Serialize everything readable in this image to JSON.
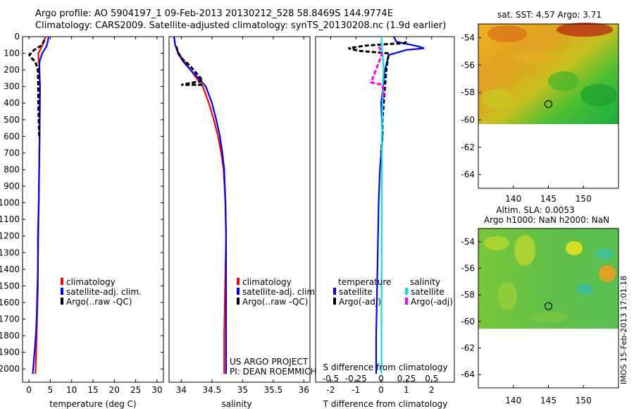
{
  "header": {
    "line1": "Argo profile: AO 5904197_1 09-Feb-2013 20130212_528 58.8469S 144.9774E",
    "line2": "Climatology: CARS2009. Satellite-adjusted climatology: synTS_20130208.nc (1.9d earlier)"
  },
  "colors": {
    "climatology": "#ff0000",
    "satellite": "#0000ff",
    "argo": "#000000",
    "salinity_satellite": "#00e5e5",
    "salinity_argo": "#ff00ff"
  },
  "chart_data": [
    {
      "type": "line",
      "id": "temperature",
      "xlabel": "temperature (deg C)",
      "ylabel": "",
      "xlim": [
        -1.5,
        31.5
      ],
      "ylim": [
        2080,
        0
      ],
      "xticks": [
        0,
        5,
        10,
        15,
        20,
        25,
        30
      ],
      "yticks": [
        0,
        100,
        200,
        300,
        400,
        500,
        600,
        700,
        800,
        900,
        1000,
        1100,
        1200,
        1300,
        1400,
        1500,
        1600,
        1700,
        1800,
        1900,
        2000
      ],
      "legend": [
        "climatology",
        "satellite-adj. clim.",
        "Argo(..raw -QC)"
      ],
      "series": [
        {
          "name": "climatology",
          "color": "#ff0000",
          "x": [
            3.9,
            3.5,
            3.0,
            2.2,
            2.3,
            2.5,
            2.6,
            2.6,
            2.5,
            2.4,
            2.3,
            2.2,
            2.1,
            2.1,
            2.0,
            1.9,
            1.8,
            1.7,
            1.5
          ],
          "y": [
            0,
            30,
            60,
            100,
            150,
            200,
            300,
            400,
            600,
            800,
            1000,
            1200,
            1400,
            1500,
            1600,
            1700,
            1800,
            1900,
            2030
          ]
        },
        {
          "name": "satellite-adj. clim.",
          "color": "#0000ff",
          "x": [
            4.6,
            4.4,
            4.1,
            3.1,
            2.5,
            2.4,
            2.6,
            2.5,
            2.5,
            2.4,
            2.3,
            2.1,
            2.1,
            2.0,
            1.9,
            1.8,
            1.6,
            1.3,
            0.9
          ],
          "y": [
            0,
            30,
            60,
            100,
            150,
            200,
            300,
            400,
            600,
            800,
            1000,
            1200,
            1400,
            1500,
            1600,
            1700,
            1800,
            1900,
            2030
          ]
        },
        {
          "name": "Argo(..raw -QC)",
          "color": "#000000",
          "x": [
            3.6,
            3.1,
            1.2,
            0.1,
            0.4,
            1.5,
            2.1,
            2.2,
            2.2,
            2.3,
            2.4
          ],
          "y": [
            20,
            50,
            80,
            110,
            125,
            150,
            200,
            300,
            400,
            500,
            600
          ]
        }
      ]
    },
    {
      "type": "line",
      "id": "salinity",
      "xlabel": "salinity",
      "ylabel": "",
      "xlim": [
        33.8,
        36.1
      ],
      "ylim": [
        2080,
        0
      ],
      "xticks": [
        34,
        34.5,
        35,
        35.5,
        36
      ],
      "legend": [
        "climatology",
        "satellite-adj. clim.",
        "Argo(..raw -QC)"
      ],
      "annotations": [
        "US ARGO PROJECT",
        "PI: DEAN ROEMMICH"
      ],
      "series": [
        {
          "name": "climatology",
          "color": "#ff0000",
          "x": [
            33.88,
            33.9,
            33.96,
            34.05,
            34.15,
            34.25,
            34.35,
            34.45,
            34.53,
            34.6,
            34.65,
            34.69,
            34.72,
            34.73,
            34.72,
            34.71,
            34.7,
            34.7
          ],
          "y": [
            0,
            50,
            100,
            150,
            200,
            250,
            300,
            400,
            500,
            600,
            700,
            800,
            1000,
            1200,
            1400,
            1600,
            1800,
            2030
          ]
        },
        {
          "name": "satellite-adj. clim.",
          "color": "#0000ff",
          "x": [
            33.88,
            33.9,
            33.95,
            34.03,
            34.15,
            34.28,
            34.4,
            34.5,
            34.57,
            34.63,
            34.67,
            34.7,
            34.72,
            34.73,
            34.73,
            34.73,
            34.73,
            34.73
          ],
          "y": [
            0,
            50,
            100,
            150,
            200,
            250,
            300,
            400,
            500,
            600,
            700,
            800,
            1000,
            1200,
            1400,
            1600,
            1800,
            2030
          ]
        },
        {
          "name": "Argo(..raw -QC)",
          "color": "#000000",
          "x": [
            33.92,
            33.95,
            34.0,
            34.1,
            34.2,
            34.35,
            34.0,
            34.35
          ],
          "y": [
            60,
            100,
            130,
            160,
            200,
            265,
            290,
            290
          ]
        }
      ]
    },
    {
      "type": "line",
      "id": "differences",
      "xlabel": "T difference from climatology",
      "xlabel_top": "S difference from climatology",
      "xlim": [
        -2.6,
        2.9
      ],
      "xticks": [
        -2,
        -1,
        0,
        1,
        2
      ],
      "xticks_s": [
        -0.5,
        -0.25,
        0,
        0.25,
        0.5
      ],
      "ylim": [
        2080,
        0
      ],
      "legend_titles": [
        "temperature",
        "salinity"
      ],
      "legend": [
        "satellite",
        "Argo(-adj)",
        "satellite",
        "Argo(-adj)"
      ],
      "series": [
        {
          "name": "temperature satellite",
          "color": "#0000ff",
          "x": [
            0.5,
            0.6,
            1.5,
            1.7,
            1.0,
            0.3,
            0.15,
            0.0,
            0.05,
            -0.05,
            -0.1,
            -0.15,
            -0.2,
            -0.2
          ],
          "y": [
            0,
            30,
            60,
            70,
            80,
            110,
            200,
            400,
            600,
            800,
            1000,
            1400,
            1800,
            2030
          ]
        },
        {
          "name": "temperature Argo(-adj)",
          "color": "#000000",
          "x": [
            1.0,
            0.9,
            0.2,
            -0.7,
            -1.3,
            -0.9,
            0.3,
            0.2,
            0.15,
            0.1,
            0.05,
            0.05,
            0.0
          ],
          "y": [
            30,
            40,
            45,
            55,
            70,
            85,
            100,
            200,
            300,
            400,
            500,
            600,
            700
          ]
        },
        {
          "name": "salinity satellite",
          "color": "#00e5e5",
          "x": [
            0.01,
            0.015,
            0.04,
            0.05,
            0.08,
            0.1,
            0.06,
            0.03,
            0.02,
            0.015,
            0.01,
            0.01
          ],
          "y": [
            0,
            50,
            80,
            100,
            150,
            200,
            300,
            600,
            1000,
            1400,
            1800,
            2030
          ]
        },
        {
          "name": "salinity Argo(-adj)",
          "color": "#ff00ff",
          "x": [
            -0.1,
            -0.05,
            0.0,
            0.02,
            -0.4,
            0.05,
            0.1,
            0.08
          ],
          "y": [
            60,
            70,
            90,
            110,
            275,
            290,
            330,
            380
          ]
        }
      ]
    },
    {
      "type": "heatmap",
      "id": "sst-map",
      "title": "sat. SST: 4.57 Argo: 3.71",
      "xticks": [
        140,
        145,
        150
      ],
      "yticks": [
        -54,
        -56,
        -58,
        -60,
        -62,
        -64
      ],
      "xlim": [
        135,
        155
      ],
      "ylim": [
        -65,
        -53
      ],
      "marker": {
        "lon": 145,
        "lat": -58.85
      }
    },
    {
      "type": "heatmap",
      "id": "sla-map",
      "title": "Altim. SLA: 0.0053",
      "subtitle": "Argo h1000: NaN h2000: NaN",
      "xticks": [
        140,
        145,
        150
      ],
      "yticks": [
        -54,
        -56,
        -58,
        -60,
        -62,
        -64
      ],
      "xlim": [
        135,
        155
      ],
      "ylim": [
        -65,
        -53
      ],
      "marker": {
        "lon": 145,
        "lat": -58.85
      },
      "side_text": "IMOS 15-Feb-2013 17:01:18"
    }
  ]
}
